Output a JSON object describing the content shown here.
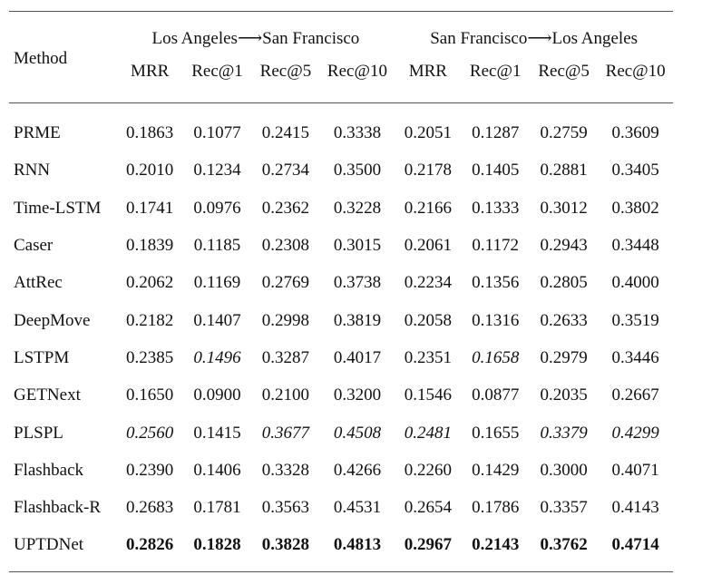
{
  "table": {
    "method_header": "Method",
    "groups": [
      {
        "label": "Los Angeles⟶San Francisco"
      },
      {
        "label": "San Francisco⟶Los Angeles"
      }
    ],
    "metrics": [
      "MRR",
      "Rec@1",
      "Rec@5",
      "Rec@10",
      "MRR",
      "Rec@1",
      "Rec@5",
      "Rec@10"
    ],
    "rows": [
      {
        "method": "PRME",
        "values": [
          "0.1863",
          "0.1077",
          "0.2415",
          "0.3338",
          "0.2051",
          "0.1287",
          "0.2759",
          "0.3609"
        ],
        "styles": [
          "",
          "",
          "",
          "",
          "",
          "",
          "",
          ""
        ]
      },
      {
        "method": "RNN",
        "values": [
          "0.2010",
          "0.1234",
          "0.2734",
          "0.3500",
          "0.2178",
          "0.1405",
          "0.2881",
          "0.3405"
        ],
        "styles": [
          "",
          "",
          "",
          "",
          "",
          "",
          "",
          ""
        ]
      },
      {
        "method": "Time-LSTM",
        "values": [
          "0.1741",
          "0.0976",
          "0.2362",
          "0.3228",
          "0.2166",
          "0.1333",
          "0.3012",
          "0.3802"
        ],
        "styles": [
          "",
          "",
          "",
          "",
          "",
          "",
          "",
          ""
        ]
      },
      {
        "method": "Caser",
        "values": [
          "0.1839",
          "0.1185",
          "0.2308",
          "0.3015",
          "0.2061",
          "0.1172",
          "0.2943",
          "0.3448"
        ],
        "styles": [
          "",
          "",
          "",
          "",
          "",
          "",
          "",
          ""
        ]
      },
      {
        "method": "AttRec",
        "values": [
          "0.2062",
          "0.1169",
          "0.2769",
          "0.3738",
          "0.2234",
          "0.1356",
          "0.2805",
          "0.4000"
        ],
        "styles": [
          "",
          "",
          "",
          "",
          "",
          "",
          "",
          ""
        ]
      },
      {
        "method": "DeepMove",
        "values": [
          "0.2182",
          "0.1407",
          "0.2998",
          "0.3819",
          "0.2058",
          "0.1316",
          "0.2633",
          "0.3519"
        ],
        "styles": [
          "",
          "",
          "",
          "",
          "",
          "",
          "",
          ""
        ]
      },
      {
        "method": "LSTPM",
        "values": [
          "0.2385",
          "0.1496",
          "0.3287",
          "0.4017",
          "0.2351",
          "0.1658",
          "0.2979",
          "0.3446"
        ],
        "styles": [
          "",
          "second",
          "",
          "",
          "",
          "second",
          "",
          ""
        ]
      },
      {
        "method": "GETNext",
        "values": [
          "0.1650",
          "0.0900",
          "0.2100",
          "0.3200",
          "0.1546",
          "0.0877",
          "0.2035",
          "0.2667"
        ],
        "styles": [
          "",
          "",
          "",
          "",
          "",
          "",
          "",
          ""
        ]
      },
      {
        "method": "PLSPL",
        "values": [
          "0.2560",
          "0.1415",
          "0.3677",
          "0.4508",
          "0.2481",
          "0.1655",
          "0.3379",
          "0.4299"
        ],
        "styles": [
          "second",
          "",
          "second",
          "second",
          "second",
          "",
          "second",
          "second"
        ]
      },
      {
        "method": "Flashback",
        "values": [
          "0.2390",
          "0.1406",
          "0.3328",
          "0.4266",
          "0.2260",
          "0.1429",
          "0.3000",
          "0.4071"
        ],
        "styles": [
          "",
          "",
          "",
          "",
          "",
          "",
          "",
          ""
        ]
      },
      {
        "method": "Flashback-R",
        "values": [
          "0.2683",
          "0.1781",
          "0.3563",
          "0.4531",
          "0.2654",
          "0.1786",
          "0.3357",
          "0.4143"
        ],
        "styles": [
          "",
          "",
          "",
          "",
          "",
          "",
          "",
          ""
        ]
      },
      {
        "method": "UPTDNet",
        "values": [
          "0.2826",
          "0.1828",
          "0.3828",
          "0.4813",
          "0.2967",
          "0.2143",
          "0.3762",
          "0.4714"
        ],
        "styles": [
          "best",
          "best",
          "best",
          "best",
          "best",
          "best",
          "best",
          "best"
        ]
      }
    ]
  }
}
